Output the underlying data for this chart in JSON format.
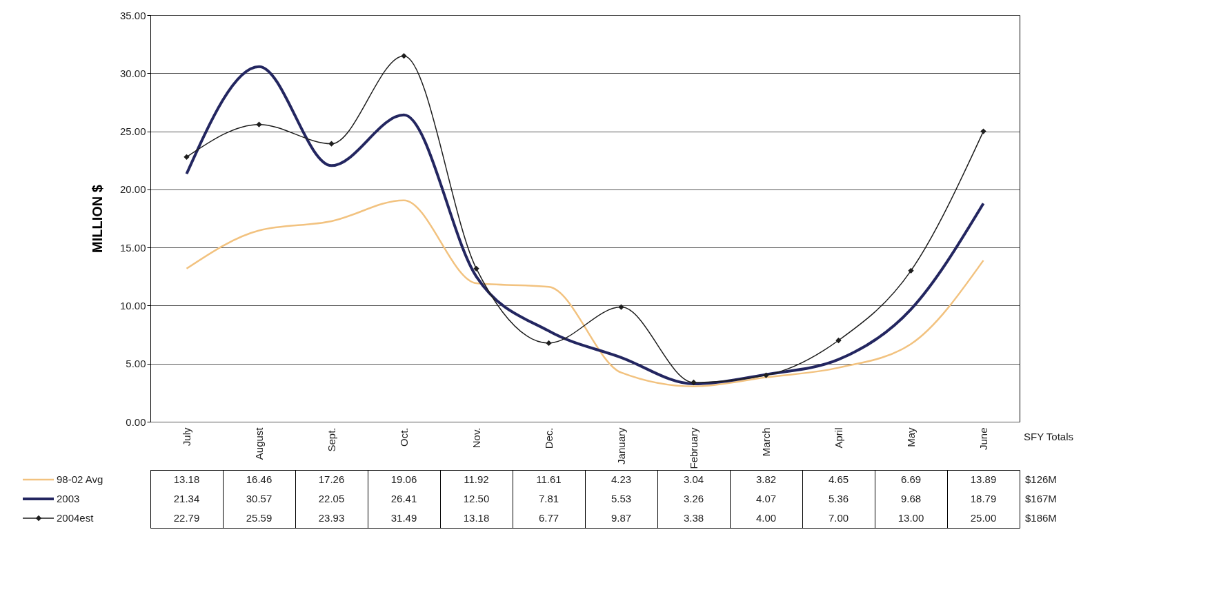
{
  "chart_data": {
    "type": "line",
    "ylabel": "MILLION $",
    "categories": [
      "July",
      "August",
      "Sept.",
      "Oct.",
      "Nov.",
      "Dec.",
      "January",
      "February",
      "March",
      "April",
      "May",
      "June"
    ],
    "series": [
      {
        "name": "98-02 Avg",
        "color": "#f2c27f",
        "values": [
          13.18,
          16.46,
          17.26,
          19.06,
          11.92,
          11.61,
          4.23,
          3.04,
          3.82,
          4.65,
          6.69,
          13.89
        ],
        "value_labels": [
          "13.18",
          "16.46",
          "17.26",
          "19.06",
          "11.92",
          "11.61",
          "4.23",
          "3.04",
          "3.82",
          "4.65",
          "6.69",
          "13.89"
        ]
      },
      {
        "name": "2003",
        "color": "#232660",
        "values": [
          21.34,
          30.57,
          22.05,
          26.41,
          12.5,
          7.81,
          5.53,
          3.26,
          4.07,
          5.36,
          9.68,
          18.79
        ],
        "value_labels": [
          "21.34",
          "30.57",
          "22.05",
          "26.41",
          "12.50",
          "7.81",
          "5.53",
          "3.26",
          "4.07",
          "5.36",
          "9.68",
          "18.79"
        ]
      },
      {
        "name": "2004est",
        "color": "#1e1e1e",
        "marker": "diamond",
        "values": [
          22.79,
          25.59,
          23.93,
          31.49,
          13.18,
          6.77,
          9.87,
          3.38,
          4,
          7,
          13,
          25
        ],
        "value_labels": [
          "22.79",
          "25.59",
          "23.93",
          "31.49",
          "13.18",
          "6.77",
          "9.87",
          "3.38",
          "4.00",
          "7.00",
          "13.00",
          "25.00"
        ]
      }
    ],
    "ylim": [
      0,
      35
    ],
    "yticks": [
      {
        "value": 0,
        "label": "0.00"
      },
      {
        "value": 5,
        "label": "5.00"
      },
      {
        "value": 10,
        "label": "10.00"
      },
      {
        "value": 15,
        "label": "15.00"
      },
      {
        "value": 20,
        "label": "20.00"
      },
      {
        "value": 25,
        "label": "25.00"
      },
      {
        "value": 30,
        "label": "30.00"
      },
      {
        "value": 35,
        "label": "35.00"
      }
    ],
    "grid": "y",
    "legend": "bottom",
    "annotations": [
      "SFY Totals",
      "$126M",
      "$167M",
      "$186M"
    ]
  }
}
